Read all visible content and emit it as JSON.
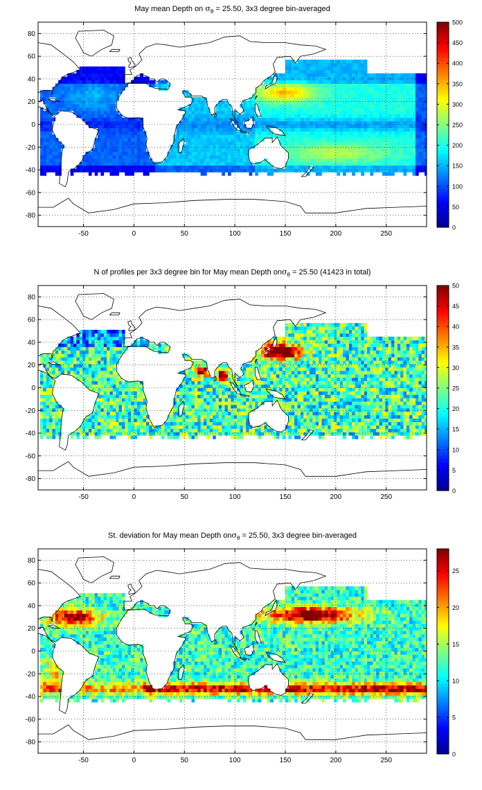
{
  "colormap": [
    "#00008f",
    "#0000ff",
    "#0080ff",
    "#00ffff",
    "#80ff80",
    "#ffff00",
    "#ff8000",
    "#ff0000",
    "#800000"
  ],
  "chart_data": [
    {
      "type": "heatmap",
      "title": {
        "prefix": "May mean Depth on ",
        "sym": "σ",
        "sub": "θ",
        "suffix": " = 25.50, 3x3 degree bin-averaged"
      },
      "x_ticks": [
        "-50",
        "0",
        "50",
        "100",
        "150",
        "200",
        "250"
      ],
      "y_ticks": [
        "80",
        "60",
        "40",
        "20",
        "0",
        "-20",
        "-40",
        "-60",
        "-80"
      ],
      "xlim": [
        -95,
        290
      ],
      "ylim": [
        -90,
        90
      ],
      "grid": true,
      "colorbar": {
        "min": 0,
        "max": 500,
        "ticks": [
          "500",
          "450",
          "400",
          "350",
          "300",
          "250",
          "200",
          "150",
          "100",
          "50",
          "0"
        ]
      },
      "approximate_field": "basin-scale bins: Atlantic ~80-120, Indian Ocean ~150-200, North Pacific ~300-380 near 20-35N 130-170E, South Pacific ~250-300 near 20-35S"
    },
    {
      "type": "heatmap",
      "title": {
        "prefix": "N of profiles per 3x3 degree bin for May mean Depth on",
        "sym": "σ",
        "sub": "θ",
        "suffix": " = 25.50 (41423 in total)"
      },
      "x_ticks": [
        "-50",
        "0",
        "50",
        "100",
        "150",
        "200",
        "250"
      ],
      "y_ticks": [
        "80",
        "60",
        "40",
        "20",
        "0",
        "-20",
        "-40",
        "-60",
        "-80"
      ],
      "xlim": [
        -95,
        290
      ],
      "ylim": [
        -90,
        90
      ],
      "grid": true,
      "colorbar": {
        "min": 0,
        "max": 50,
        "ticks": [
          "50",
          "45",
          "40",
          "35",
          "30",
          "25",
          "20",
          "15",
          "10",
          "5",
          "0"
        ]
      },
      "approximate_field": "mostly 10-30 profiles per bin; saturated 50 in the Kuroshio region (25-40N, 130-160E) and near India"
    },
    {
      "type": "heatmap",
      "title": {
        "prefix": "St. deviation for May mean Depth on",
        "sym": "σ",
        "sub": "θ",
        "suffix": " = 25.50, 3x3 degree bin-averaged"
      },
      "x_ticks": [
        "-50",
        "0",
        "50",
        "100",
        "150",
        "200",
        "250"
      ],
      "y_ticks": [
        "80",
        "60",
        "40",
        "20",
        "0",
        "-20",
        "-40",
        "-60",
        "-80"
      ],
      "xlim": [
        -95,
        290
      ],
      "ylim": [
        -90,
        90
      ],
      "grid": true,
      "colorbar": {
        "min": 0,
        "max": 28,
        "ticks": [
          "25",
          "20",
          "15",
          "10",
          "5",
          "0"
        ],
        "tick_values": [
          25,
          20,
          15,
          10,
          5,
          0
        ]
      },
      "approximate_field": "typically 8-15; high (>25) along 25-40N in North Pacific and North Atlantic and along ~35S in Southern Hemisphere"
    }
  ]
}
